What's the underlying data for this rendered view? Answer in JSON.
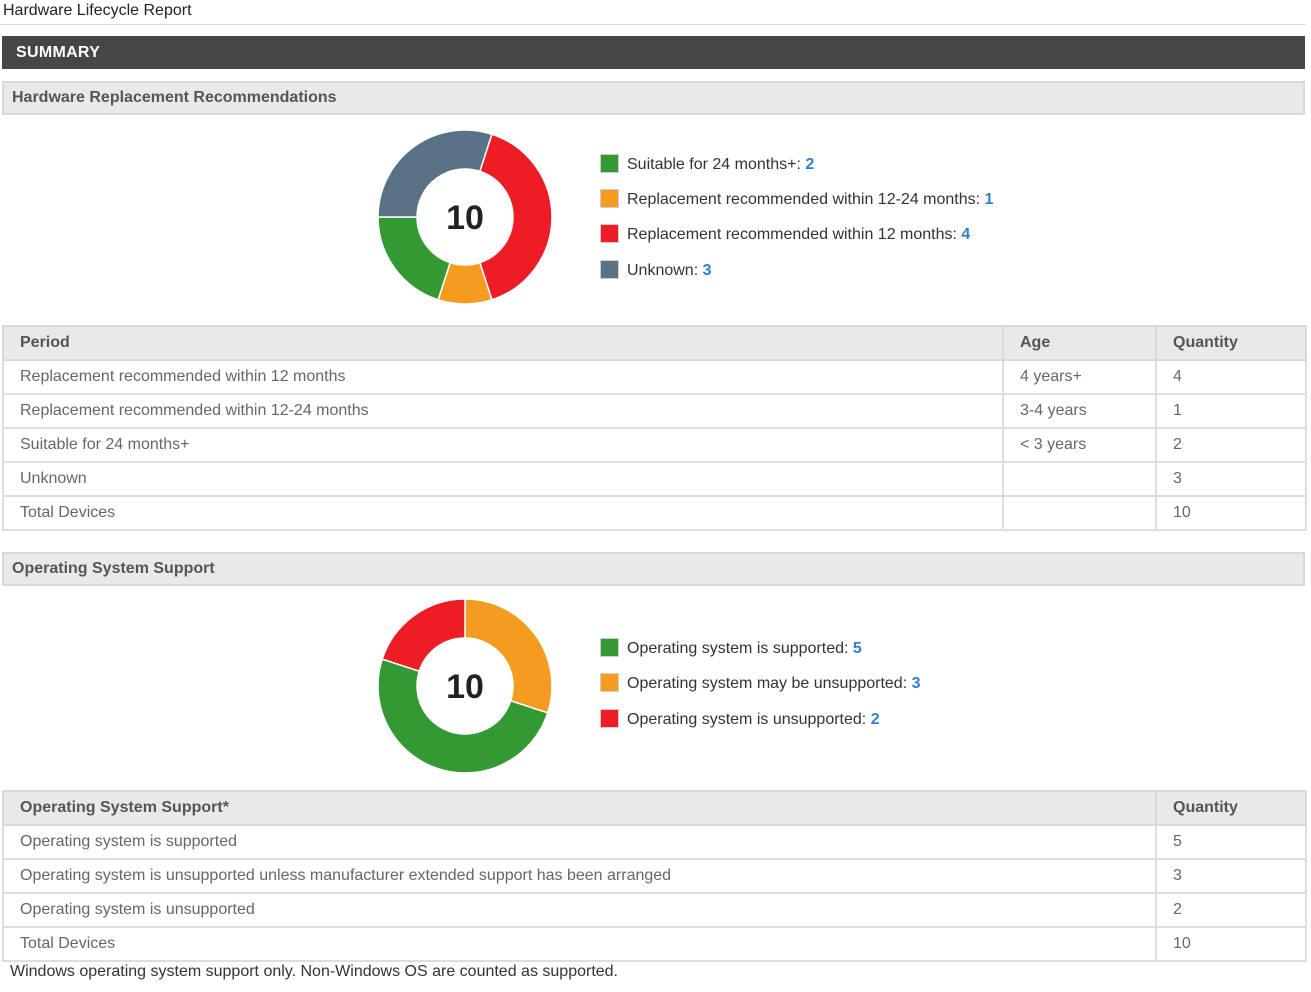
{
  "page": {
    "title": "Hardware Lifecycle Report"
  },
  "summary": {
    "label": "SUMMARY"
  },
  "hardware": {
    "header": "Hardware Replacement Recommendations",
    "total": "10",
    "legend": [
      {
        "label": "Suitable for 24 months+: ",
        "value": "2",
        "color": "#339933"
      },
      {
        "label": "Replacement recommended within 12-24 months: ",
        "value": "1",
        "color": "#f39c1f"
      },
      {
        "label": "Replacement recommended within 12 months: ",
        "value": "4",
        "color": "#ee1c25"
      },
      {
        "label": "Unknown: ",
        "value": "3",
        "color": "#5a7286"
      }
    ],
    "table": {
      "columns": [
        "Period",
        "Age",
        "Quantity"
      ],
      "rows": [
        [
          "Replacement recommended within 12 months",
          "4 years+",
          "4"
        ],
        [
          "Replacement recommended within 12-24 months",
          "3-4 years",
          "1"
        ],
        [
          "Suitable for 24 months+",
          "< 3 years",
          "2"
        ],
        [
          "Unknown",
          "",
          "3"
        ],
        [
          "Total Devices",
          "",
          "10"
        ]
      ]
    }
  },
  "os": {
    "header": "Operating System Support",
    "total": "10",
    "legend": [
      {
        "label": "Operating system is supported: ",
        "value": "5",
        "color": "#339933"
      },
      {
        "label": "Operating system may be unsupported: ",
        "value": "3",
        "color": "#f39c1f"
      },
      {
        "label": "Operating system is unsupported: ",
        "value": "2",
        "color": "#ee1c25"
      }
    ],
    "table": {
      "columns": [
        "Operating System Support*",
        "Quantity"
      ],
      "rows": [
        [
          "Operating system is supported",
          "5"
        ],
        [
          "Operating system is unsupported unless manufacturer extended support has been arranged",
          "3"
        ],
        [
          "Operating system is unsupported",
          "2"
        ],
        [
          "Total Devices",
          "10"
        ]
      ]
    }
  },
  "footnote": "Windows operating system support only. Non-Windows OS are counted as supported.",
  "chart_data": [
    {
      "type": "pie",
      "categories": [
        "Suitable for 24 months+",
        "Replacement recommended within 12-24 months",
        "Replacement recommended within 12 months",
        "Unknown"
      ],
      "values": [
        2,
        1,
        4,
        3
      ],
      "colors": [
        "#339933",
        "#f39c1f",
        "#ee1c25",
        "#5a7286"
      ],
      "segment_order": [
        "Replacement recommended within 12 months",
        "Replacement recommended within 12-24 months",
        "Suitable for 24 months+",
        "Unknown"
      ],
      "center_label": "10"
    },
    {
      "type": "pie",
      "categories": [
        "Operating system is supported",
        "Operating system may be unsupported",
        "Operating system is unsupported"
      ],
      "values": [
        5,
        3,
        2
      ],
      "colors": [
        "#339933",
        "#f39c1f",
        "#ee1c25"
      ],
      "segment_order": [
        "Operating system may be unsupported",
        "Operating system is supported",
        "Operating system is unsupported"
      ],
      "center_label": "10"
    }
  ]
}
